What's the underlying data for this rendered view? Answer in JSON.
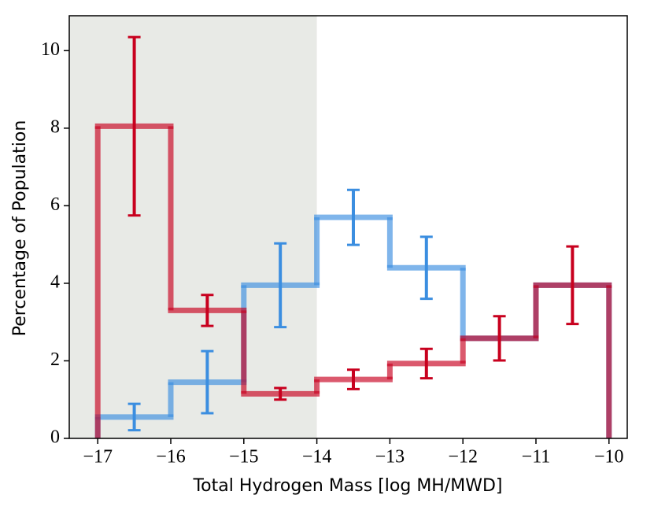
{
  "chart_data": {
    "type": "step_histogram",
    "xlabel": "Total Hydrogen Mass [log MH/MWD]",
    "ylabel": "Percentage of Population",
    "bins": [
      -17,
      -16,
      -15,
      -14,
      -13,
      -12,
      -11,
      -10
    ],
    "series": [
      {
        "color": "#3b8ee0",
        "values": [
          0.55,
          1.45,
          3.95,
          5.7,
          4.4,
          2.58,
          3.95
        ],
        "errors": [
          0.34,
          0.8,
          1.08,
          0.71,
          0.8,
          null,
          null
        ]
      },
      {
        "color": "#c8001e",
        "values": [
          8.05,
          3.3,
          1.15,
          1.52,
          1.93,
          2.58,
          3.95
        ],
        "errors": [
          2.3,
          0.4,
          0.15,
          0.25,
          0.38,
          0.57,
          1.0
        ]
      }
    ],
    "shade_to": -14,
    "shade_color": "#e8eae6",
    "xlim": [
      -17.39,
      -9.75
    ],
    "xticks": [
      {
        "value": -17,
        "label": "−17"
      },
      {
        "value": -16,
        "label": "−16"
      },
      {
        "value": -15,
        "label": "−15"
      },
      {
        "value": -14,
        "label": "−14"
      },
      {
        "value": -13,
        "label": "−13"
      },
      {
        "value": -12,
        "label": "−12"
      },
      {
        "value": -11,
        "label": "−11"
      },
      {
        "value": -10,
        "label": "−10"
      }
    ],
    "ylim": [
      0,
      10.9
    ],
    "yticks": [
      0,
      2,
      4,
      6,
      8,
      10
    ]
  }
}
